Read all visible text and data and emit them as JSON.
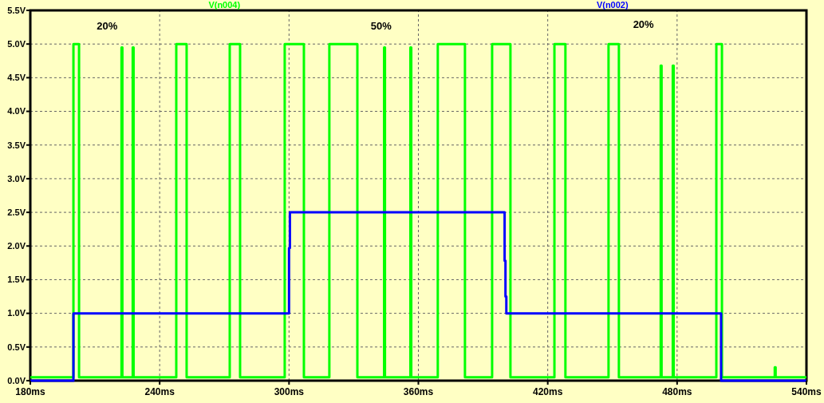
{
  "chart_data": {
    "type": "line",
    "legend": "top",
    "grid": true,
    "xlim": [
      180,
      540
    ],
    "ylim": [
      0,
      5.5
    ],
    "xticks": [
      {
        "value": 180,
        "label": "180ms"
      },
      {
        "value": 240,
        "label": "240ms"
      },
      {
        "value": 300,
        "label": "300ms"
      },
      {
        "value": 360,
        "label": "360ms"
      },
      {
        "value": 420,
        "label": "420ms"
      },
      {
        "value": 480,
        "label": "480ms"
      },
      {
        "value": 540,
        "label": "540ms"
      }
    ],
    "yticks": [
      {
        "value": 0,
        "label": "0.0V"
      },
      {
        "value": 0.5,
        "label": "0.5V"
      },
      {
        "value": 1,
        "label": "1.0V"
      },
      {
        "value": 1.5,
        "label": "1.5V"
      },
      {
        "value": 2,
        "label": "2.0V"
      },
      {
        "value": 2.5,
        "label": "2.5V"
      },
      {
        "value": 3,
        "label": "3.0V"
      },
      {
        "value": 3.5,
        "label": "3.5V"
      },
      {
        "value": 4,
        "label": "4.0V"
      },
      {
        "value": 4.5,
        "label": "4.5V"
      },
      {
        "value": 5,
        "label": "5.0V"
      },
      {
        "value": 5.5,
        "label": "5.5V"
      }
    ],
    "annotations": [
      "20%",
      "50%",
      "20%"
    ],
    "series": [
      {
        "name": "V(n004)",
        "color": "#00ff00",
        "x": [
          180,
          200,
          200,
          202.6,
          202.6,
          222.3,
          222.3,
          222.7,
          222.7,
          227.5,
          227.5,
          227.9,
          227.9,
          247.7,
          247.7,
          252.5,
          252.5,
          272.5,
          272.5,
          277.3,
          277.3,
          298,
          298,
          306.9,
          306.9,
          318.7,
          318.7,
          331.7,
          331.7,
          344.1,
          344.1,
          344.5,
          344.5,
          356.3,
          356.3,
          356.7,
          356.7,
          369,
          369,
          381.6,
          381.6,
          394.2,
          394.2,
          402.7,
          402.7,
          423.1,
          423.1,
          428.2,
          428.2,
          448.2,
          448.2,
          453,
          453,
          472.4,
          472.4,
          472.8,
          472.8,
          478,
          478,
          478.4,
          478.4,
          498.2,
          498.2,
          500.8,
          500.8,
          525.3,
          525.3,
          525.7,
          525.7,
          540
        ],
        "values": [
          0.05,
          0.05,
          5,
          5,
          0.05,
          0.05,
          4.95,
          4.95,
          0.05,
          0.05,
          4.95,
          4.95,
          0.05,
          0.05,
          5,
          5,
          0.05,
          0.05,
          5,
          5,
          0.05,
          0.05,
          5,
          5,
          0.05,
          0.05,
          5,
          5,
          0.05,
          0.05,
          4.95,
          4.95,
          0.05,
          0.05,
          4.95,
          4.95,
          0.05,
          0.05,
          5,
          5,
          0.05,
          0.05,
          5,
          5,
          0.05,
          0.05,
          5,
          5,
          0.05,
          0.05,
          5,
          5,
          0.05,
          0.05,
          4.68,
          4.68,
          0.05,
          0.05,
          4.68,
          4.68,
          0.05,
          0.05,
          5,
          5,
          0.05,
          0.05,
          0.2,
          0.2,
          0.05,
          0.05
        ]
      },
      {
        "name": "V(n002)",
        "color": "#0000ff",
        "x": [
          180,
          200,
          200,
          300,
          300,
          300.4,
          300.4,
          400,
          400,
          400.4,
          400.4,
          400.8,
          400.8,
          500.4,
          500.4,
          540
        ],
        "values": [
          0,
          0,
          1,
          1,
          1.97,
          1.97,
          2.5,
          2.5,
          1.78,
          1.78,
          1.25,
          1.25,
          1,
          1,
          0,
          0
        ]
      }
    ]
  }
}
